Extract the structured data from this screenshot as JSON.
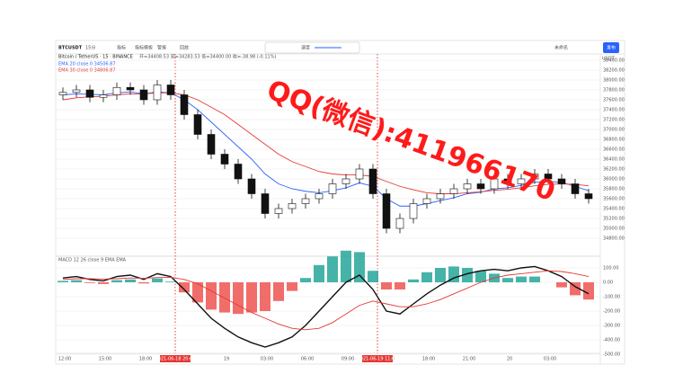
{
  "toolbar": {
    "symbol": "BTCUSDT",
    "interval": "15分",
    "indicators": "指标",
    "templates": "指标模板",
    "alert": "警报",
    "replay": "回放",
    "speed": "速度",
    "layout": "未命名",
    "publish": "发布"
  },
  "legend": {
    "title": "Bitcoin / TetherUS · 15 · BINANCE",
    "ohlc": "开=34408.53 高=34283.53 低=34400.00 收=-38.98 (-0.11%)",
    "macd": "MACD 12 26 close 9 EMA EMA"
  },
  "watermark": "QQ(微信):411966170",
  "currency": "USDT",
  "chart_data": {
    "type": "candlestick",
    "ylim": [
      34800,
      38400
    ],
    "yticks": [
      {
        "value": 38400,
        "label": "38400.00"
      },
      {
        "value": 38200,
        "label": "38200.00"
      },
      {
        "value": 38000,
        "label": "38000.00"
      },
      {
        "value": 37800,
        "label": "37800.00"
      },
      {
        "value": 37600,
        "label": "37600.00"
      },
      {
        "value": 37400,
        "label": "37400.00"
      },
      {
        "value": 37200,
        "label": "37200.00"
      },
      {
        "value": 37000,
        "label": "37000.00"
      },
      {
        "value": 36800,
        "label": "36800.00"
      },
      {
        "value": 36600,
        "label": "36600.00"
      },
      {
        "value": 36400,
        "label": "36400.00"
      },
      {
        "value": 36200,
        "label": "36200.00"
      },
      {
        "value": 36000,
        "label": "36000.00"
      },
      {
        "value": 35800,
        "label": "35800.00"
      },
      {
        "value": 35600,
        "label": "35600.00"
      },
      {
        "value": 35400,
        "label": "35400.00"
      },
      {
        "value": 35200,
        "label": "35200.00"
      },
      {
        "value": 35000,
        "label": "35000.00"
      },
      {
        "value": 34800,
        "label": "34800.00"
      }
    ],
    "candles": [
      [
        37700,
        37850,
        37600,
        37750
      ],
      [
        37750,
        37900,
        37650,
        37800
      ],
      [
        37800,
        37900,
        37550,
        37650
      ],
      [
        37650,
        37800,
        37550,
        37700
      ],
      [
        37700,
        37950,
        37600,
        37850
      ],
      [
        37850,
        37950,
        37700,
        37800
      ],
      [
        37800,
        37900,
        37500,
        37600
      ],
      [
        37600,
        38000,
        37500,
        37900
      ],
      [
        37900,
        38000,
        37600,
        37700
      ],
      [
        37700,
        37800,
        37200,
        37300
      ],
      [
        37300,
        37400,
        36800,
        36900
      ],
      [
        36900,
        37000,
        36400,
        36500
      ],
      [
        36500,
        36600,
        36200,
        36300
      ],
      [
        36300,
        36400,
        35900,
        36000
      ],
      [
        36000,
        36100,
        35600,
        35700
      ],
      [
        35700,
        35800,
        35200,
        35300
      ],
      [
        35300,
        35500,
        35200,
        35400
      ],
      [
        35400,
        35600,
        35300,
        35500
      ],
      [
        35500,
        35700,
        35400,
        35600
      ],
      [
        35600,
        35800,
        35500,
        35700
      ],
      [
        35700,
        36000,
        35600,
        35900
      ],
      [
        35900,
        36100,
        35800,
        36000
      ],
      [
        36000,
        36300,
        35900,
        36200
      ],
      [
        36200,
        36300,
        35600,
        35700
      ],
      [
        35700,
        35800,
        34900,
        35000
      ],
      [
        35000,
        35300,
        34900,
        35200
      ],
      [
        35200,
        35600,
        35100,
        35500
      ],
      [
        35500,
        35700,
        35400,
        35600
      ],
      [
        35600,
        35800,
        35500,
        35700
      ],
      [
        35700,
        35900,
        35600,
        35800
      ],
      [
        35800,
        36000,
        35700,
        35900
      ],
      [
        35900,
        36000,
        35700,
        35800
      ],
      [
        35800,
        36100,
        35700,
        36000
      ],
      [
        36000,
        36100,
        35800,
        35900
      ],
      [
        35900,
        36100,
        35800,
        36000
      ],
      [
        36000,
        36200,
        35900,
        36100
      ],
      [
        36100,
        36200,
        35900,
        36000
      ],
      [
        36000,
        36100,
        35800,
        35900
      ],
      [
        35900,
        36000,
        35600,
        35700
      ],
      [
        35700,
        35800,
        35500,
        35600
      ]
    ],
    "series": [
      {
        "name": "EMA 20 close 0 34506.87",
        "color": "#2962ff",
        "values": [
          37700,
          37720,
          37710,
          37700,
          37740,
          37760,
          37720,
          37760,
          37740,
          37600,
          37400,
          37150,
          36900,
          36650,
          36400,
          36100,
          35900,
          35800,
          35750,
          35720,
          35760,
          35820,
          35920,
          35850,
          35600,
          35450,
          35450,
          35500,
          35560,
          35620,
          35700,
          35730,
          35800,
          35820,
          35870,
          35930,
          35950,
          35930,
          35850,
          35760
        ]
      },
      {
        "name": "EMA 30 close 0 34806.87",
        "color": "#e53935",
        "values": [
          37600,
          37640,
          37660,
          37670,
          37700,
          37720,
          37720,
          37740,
          37740,
          37700,
          37600,
          37450,
          37300,
          37100,
          36900,
          36700,
          36500,
          36350,
          36250,
          36150,
          36100,
          36080,
          36080,
          36050,
          35950,
          35850,
          35780,
          35720,
          35700,
          35700,
          35720,
          35740,
          35770,
          35790,
          35820,
          35860,
          35890,
          35900,
          35890,
          35860
        ]
      }
    ],
    "macd": {
      "ylim": [
        -500,
        100
      ],
      "yticks": [
        {
          "value": 100,
          "label": "100.00"
        },
        {
          "value": 0,
          "label": "0.00"
        },
        {
          "value": -100,
          "label": "-100.00"
        },
        {
          "value": -200,
          "label": "-200.00"
        },
        {
          "value": -300,
          "label": "-300.00"
        },
        {
          "value": -400,
          "label": "-400.00"
        },
        {
          "value": -500,
          "label": "-500.00"
        }
      ],
      "histogram": [
        10,
        15,
        -5,
        -12,
        15,
        20,
        -8,
        27,
        5,
        -70,
        -140,
        -190,
        -210,
        -220,
        -210,
        -200,
        -130,
        -60,
        30,
        120,
        180,
        220,
        210,
        80,
        -50,
        -50,
        20,
        70,
        100,
        110,
        100,
        80,
        60,
        30,
        40,
        40,
        0,
        -35,
        -90,
        -120
      ],
      "macd_line": [
        30,
        40,
        20,
        10,
        40,
        50,
        20,
        60,
        40,
        -50,
        -150,
        -250,
        -320,
        -380,
        -420,
        -450,
        -420,
        -380,
        -300,
        -200,
        -100,
        0,
        50,
        -50,
        -200,
        -220,
        -150,
        -80,
        -20,
        30,
        60,
        80,
        90,
        80,
        100,
        110,
        80,
        40,
        -30,
        -80
      ],
      "signal_line": [
        20,
        25,
        25,
        22,
        25,
        30,
        28,
        33,
        35,
        20,
        -10,
        -60,
        -110,
        -160,
        -210,
        -250,
        -290,
        -320,
        -330,
        -320,
        -280,
        -220,
        -160,
        -130,
        -150,
        -170,
        -170,
        -150,
        -120,
        -80,
        -40,
        0,
        30,
        50,
        60,
        70,
        80,
        75,
        60,
        40
      ]
    },
    "time_labels": [
      "12:00",
      "15:00",
      "18:00",
      "19",
      "03:00",
      "06:00",
      "09:00",
      "15:00",
      "18:00",
      "21:00",
      "20",
      "03:00"
    ],
    "crosshair_labels": [
      "2021-06-18 20:00",
      "2021-06-19 11:00"
    ]
  }
}
